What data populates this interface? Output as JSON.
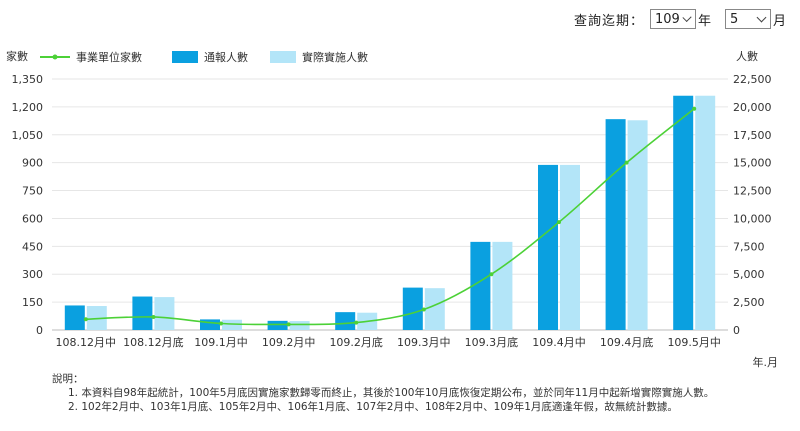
{
  "query": {
    "label": "查詢迄期：",
    "year_value": "109",
    "year_unit": "年",
    "month_value": "5",
    "month_unit": "月"
  },
  "chart_data": {
    "type": "bar",
    "categories": [
      "108.12月中",
      "108.12月底",
      "109.1月中",
      "109.2月中",
      "109.2月底",
      "109.3月中",
      "109.3月底",
      "109.4月中",
      "109.4月底",
      "109.5月中"
    ],
    "series": [
      {
        "name": "事業單位家數",
        "type": "line",
        "axis": "left",
        "color": "#4cd137",
        "values": [
          58,
          70,
          35,
          30,
          40,
          110,
          300,
          580,
          900,
          1190
        ]
      },
      {
        "name": "通報人數",
        "type": "bar",
        "axis": "right",
        "color": "#0aa0e0",
        "values": [
          2200,
          3000,
          950,
          820,
          1600,
          3800,
          7900,
          14800,
          18900,
          21000
        ]
      },
      {
        "name": "實際實施人數",
        "type": "bar",
        "axis": "right",
        "color": "#b3e5f8",
        "values": [
          2150,
          2950,
          920,
          800,
          1550,
          3750,
          7900,
          14800,
          18800,
          21000
        ]
      }
    ],
    "left_axis": {
      "label": "家數",
      "range": [
        0,
        1350
      ],
      "ticks": [
        "0",
        "150",
        "300",
        "450",
        "600",
        "750",
        "900",
        "1,050",
        "1,200",
        "1,350"
      ]
    },
    "right_axis": {
      "label": "人數",
      "range": [
        0,
        22500
      ],
      "ticks": [
        "0",
        "2,500",
        "5,000",
        "7,500",
        "10,000",
        "12,500",
        "15,000",
        "17,500",
        "20,000",
        "22,500"
      ]
    },
    "xlabel": "年.月",
    "grid": true,
    "legend_position": "top-left"
  },
  "notes": {
    "title": "說明：",
    "items": [
      "1.  本資料自98年起統計，100年5月底因實施家數歸零而終止，其後於100年10月底恢復定期公布，並於同年11月中起新增實際實施人數。",
      "2.  102年2月中、103年1月底、105年2月中、106年1月底、107年2月中、108年2月中、109年1月底適逢年假，故無統計數據。"
    ]
  }
}
